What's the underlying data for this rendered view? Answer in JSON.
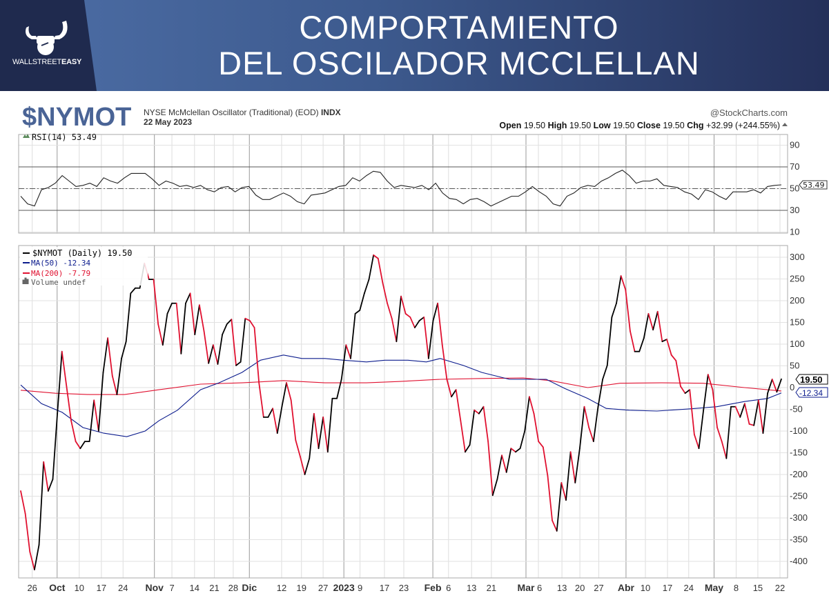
{
  "header": {
    "logo_text_light": "WALLSTREET",
    "logo_text_bold": "EASY",
    "title_line1": "COMPORTAMIENTO",
    "title_line2": "DEL OSCILADOR MCCLELLAN"
  },
  "chart_info": {
    "symbol": "$NYMOT",
    "description": "NYSE McMclellan Oscillator (Traditional) (EOD)",
    "exchange": "INDX",
    "date": "22 May 2023",
    "source": "@StockCharts.com",
    "open_label": "Open",
    "open": "19.50",
    "high_label": "High",
    "high": "19.50",
    "low_label": "Low",
    "low": "19.50",
    "close_label": "Close",
    "close": "19.50",
    "chg_label": "Chg",
    "chg": "+32.99 (+244.55%)"
  },
  "colors": {
    "price": "#000000",
    "price_down": "#e0102f",
    "ma50": "#0a1a8c",
    "ma200": "#e0102f",
    "header_dark": "#1f2a4e",
    "symbol": "#4a6496"
  },
  "chart_data": [
    {
      "type": "line",
      "title": "RSI(14) 53.49",
      "legend": "RSI(14) 53.49",
      "last_label": "53.49",
      "ylim": [
        0,
        100
      ],
      "yticks": [
        "90",
        "70",
        "50",
        "30",
        "10"
      ],
      "ytick_values": [
        90,
        70,
        50,
        30,
        10
      ],
      "reference_lines": [
        70,
        50,
        30
      ],
      "x_range_days": [
        0,
        165
      ],
      "values": [
        43,
        36,
        34,
        49,
        51,
        55,
        62,
        57,
        52,
        53,
        55,
        52,
        60,
        57,
        55,
        60,
        64,
        64,
        64,
        59,
        53,
        57,
        55,
        52,
        53,
        51,
        53,
        49,
        47,
        51,
        52,
        47,
        51,
        52,
        44,
        40,
        40,
        43,
        46,
        43,
        38,
        36,
        44,
        45,
        46,
        49,
        52,
        53,
        60,
        57,
        62,
        66,
        65,
        57,
        51,
        53,
        52,
        51,
        53,
        49,
        55,
        46,
        41,
        40,
        36,
        40,
        41,
        38,
        34,
        37,
        40,
        43,
        43,
        47,
        52,
        47,
        43,
        36,
        34,
        43,
        46,
        51,
        53,
        52,
        57,
        60,
        64,
        67,
        62,
        55,
        57,
        57,
        59,
        53,
        52,
        51,
        47,
        45,
        40,
        49,
        47,
        43,
        40,
        47,
        47,
        47,
        49,
        46,
        52,
        53,
        53.49
      ]
    },
    {
      "type": "line",
      "title": "$NYMOT (Daily) 19.50",
      "ylim": [
        -430,
        330
      ],
      "yticks": [
        "300",
        "250",
        "200",
        "150",
        "100",
        "50",
        "0",
        "-50",
        "-100",
        "-150",
        "-200",
        "-250",
        "-300",
        "-350",
        "-400"
      ],
      "ytick_values": [
        300,
        250,
        200,
        150,
        100,
        50,
        0,
        -50,
        -100,
        -150,
        -200,
        -250,
        -300,
        -350,
        -400
      ],
      "x_range_days": [
        0,
        165
      ],
      "xticks": [
        {
          "label": "26",
          "day": 2.5,
          "bold": false
        },
        {
          "label": "Oct",
          "day": 7.9,
          "bold": true
        },
        {
          "label": "10",
          "day": 12.7,
          "bold": false
        },
        {
          "label": "17",
          "day": 17.5,
          "bold": false
        },
        {
          "label": "24",
          "day": 22.2,
          "bold": false
        },
        {
          "label": "Nov",
          "day": 29,
          "bold": true
        },
        {
          "label": "7",
          "day": 32.8,
          "bold": false
        },
        {
          "label": "14",
          "day": 37.7,
          "bold": false
        },
        {
          "label": "21",
          "day": 42,
          "bold": false
        },
        {
          "label": "28",
          "day": 46.1,
          "bold": false
        },
        {
          "label": "Dic",
          "day": 49.6,
          "bold": true
        },
        {
          "label": "12",
          "day": 56.6,
          "bold": false
        },
        {
          "label": "19",
          "day": 60.9,
          "bold": false
        },
        {
          "label": "27",
          "day": 65.6,
          "bold": false
        },
        {
          "label": "2023",
          "day": 70.1,
          "bold": true
        },
        {
          "label": "9",
          "day": 73.6,
          "bold": false
        },
        {
          "label": "17",
          "day": 78.9,
          "bold": false
        },
        {
          "label": "23",
          "day": 83.1,
          "bold": false
        },
        {
          "label": "Feb",
          "day": 89.4,
          "bold": true
        },
        {
          "label": "6",
          "day": 92.8,
          "bold": false
        },
        {
          "label": "13",
          "day": 97.8,
          "bold": false
        },
        {
          "label": "21",
          "day": 102.1,
          "bold": false
        },
        {
          "label": "Mar",
          "day": 109.6,
          "bold": true
        },
        {
          "label": "6",
          "day": 112.3,
          "bold": false
        },
        {
          "label": "13",
          "day": 117.4,
          "bold": false
        },
        {
          "label": "20",
          "day": 121.3,
          "bold": false
        },
        {
          "label": "27",
          "day": 125.4,
          "bold": false
        },
        {
          "label": "Abr",
          "day": 131.3,
          "bold": true
        },
        {
          "label": "10",
          "day": 135.5,
          "bold": false
        },
        {
          "label": "17",
          "day": 140.3,
          "bold": false
        },
        {
          "label": "24",
          "day": 144.9,
          "bold": false
        },
        {
          "label": "May",
          "day": 150.4,
          "bold": true
        },
        {
          "label": "8",
          "day": 155.2,
          "bold": false
        },
        {
          "label": "15",
          "day": 159.9,
          "bold": false
        },
        {
          "label": "22",
          "day": 164.7,
          "bold": false
        }
      ],
      "legend": [
        {
          "label": "$NYMOT (Daily) 19.50",
          "color": "#000000"
        },
        {
          "label": "MA(50) -12.34",
          "color": "#0a1a8c"
        },
        {
          "label": "MA(200) -7.79",
          "color": "#e0102f"
        },
        {
          "label": "Volume undef",
          "color": "#555555"
        }
      ],
      "last_labels": {
        "price": "19.50",
        "ma50": "-12.34"
      },
      "series": [
        {
          "name": "$NYMOT",
          "values": [
            -238,
            -290,
            -378,
            -419,
            -362,
            -171,
            -238,
            -211,
            -60,
            83,
            3,
            -76,
            -124,
            -140,
            -124,
            -124,
            -29,
            -100,
            35,
            114,
            27,
            -16,
            67,
            106,
            217,
            229,
            229,
            286,
            249,
            249,
            146,
            98,
            170,
            194,
            194,
            78,
            194,
            217,
            122,
            190,
            130,
            56,
            98,
            54,
            122,
            146,
            157,
            51,
            59,
            159,
            154,
            138,
            11,
            -68,
            -68,
            -48,
            -105,
            -44,
            11,
            -29,
            -121,
            -159,
            -200,
            -163,
            -60,
            -140,
            -68,
            -148,
            -25,
            -25,
            19,
            98,
            67,
            170,
            178,
            217,
            249,
            305,
            297,
            241,
            194,
            159,
            106,
            210,
            170,
            162,
            138,
            154,
            162,
            67,
            154,
            194,
            98,
            19,
            -21,
            -5,
            -76,
            -148,
            -132,
            -52,
            -60,
            -44,
            -124,
            -248,
            -211,
            -156,
            -195,
            -140,
            -148,
            -140,
            -100,
            -21,
            -60,
            -124,
            -137,
            -203,
            -306,
            -330,
            -219,
            -259,
            -148,
            -219,
            -140,
            -44,
            -92,
            -124,
            -44,
            19,
            51,
            162,
            194,
            257,
            225,
            130,
            83,
            83,
            114,
            170,
            133,
            175,
            106,
            111,
            75,
            62,
            3,
            -13,
            -5,
            -108,
            -140,
            -52,
            30,
            -5,
            -92,
            -124,
            -163,
            -44,
            -44,
            -68,
            -37,
            -84,
            -87,
            -29,
            -105,
            -13,
            19,
            -10,
            19.5
          ]
        },
        {
          "name": "MA(50)",
          "points": [
            [
              0,
              6
            ],
            [
              4.5,
              -37
            ],
            [
              9,
              -57
            ],
            [
              13.5,
              -92
            ],
            [
              18,
              -105
            ],
            [
              23,
              -113
            ],
            [
              27,
              -100
            ],
            [
              30,
              -76
            ],
            [
              34,
              -52
            ],
            [
              39,
              -5
            ],
            [
              43,
              11
            ],
            [
              48,
              35
            ],
            [
              52,
              63
            ],
            [
              57,
              75
            ],
            [
              61,
              67
            ],
            [
              66,
              67
            ],
            [
              70,
              63
            ],
            [
              75,
              59
            ],
            [
              79,
              63
            ],
            [
              84,
              63
            ],
            [
              88,
              59
            ],
            [
              91,
              67
            ],
            [
              96,
              51
            ],
            [
              100,
              35
            ],
            [
              106,
              19
            ],
            [
              114,
              19
            ],
            [
              118,
              -2
            ],
            [
              123,
              -25
            ],
            [
              127,
              -48
            ],
            [
              132,
              -52
            ],
            [
              138,
              -54
            ],
            [
              145,
              -49
            ],
            [
              151,
              -44
            ],
            [
              157,
              -32
            ],
            [
              162,
              -25
            ],
            [
              165,
              -12.34
            ]
          ]
        },
        {
          "name": "MA(200)",
          "points": [
            [
              0,
              -6
            ],
            [
              7.5,
              -13
            ],
            [
              15,
              -16
            ],
            [
              22.5,
              -16
            ],
            [
              30,
              -5
            ],
            [
              39,
              8
            ],
            [
              48,
              11
            ],
            [
              57,
              16
            ],
            [
              66,
              11
            ],
            [
              75,
              11
            ],
            [
              82,
              14
            ],
            [
              91,
              19
            ],
            [
              100,
              21
            ],
            [
              109,
              22
            ],
            [
              115,
              16
            ],
            [
              123,
              0
            ],
            [
              130,
              10
            ],
            [
              139,
              11
            ],
            [
              148,
              10
            ],
            [
              157,
              0
            ],
            [
              165,
              -7.79
            ]
          ]
        }
      ]
    }
  ]
}
